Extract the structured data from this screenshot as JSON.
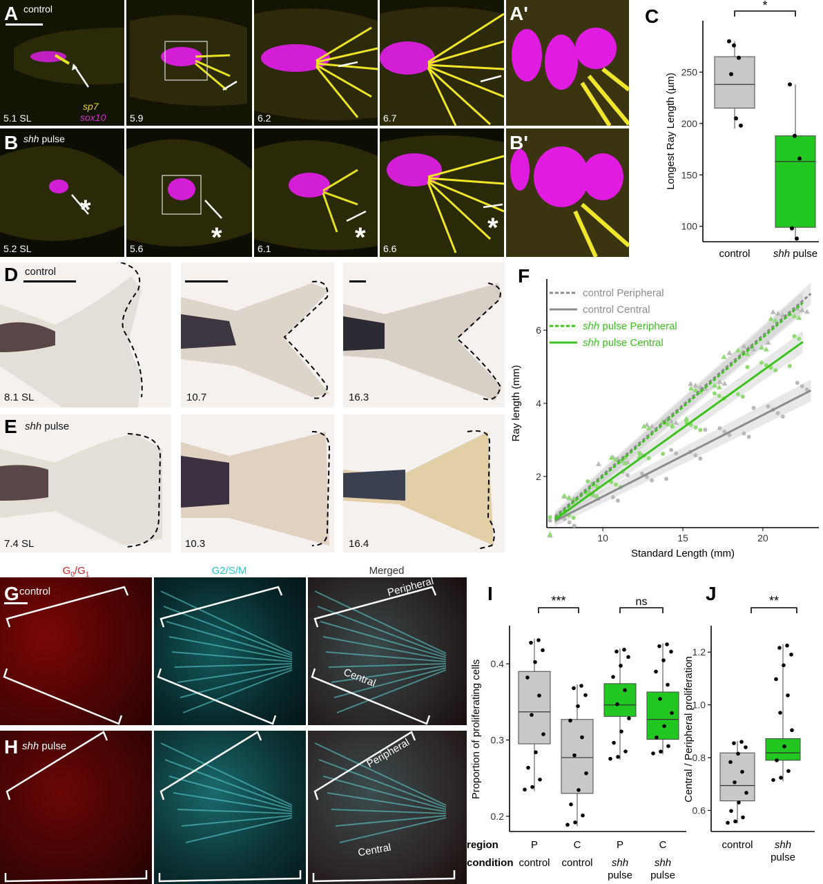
{
  "rowAB": {
    "A_label": "A",
    "B_label": "B",
    "A_cond": "control",
    "B_cond_italic": "shh",
    "B_cond_rest": " pulse",
    "A_stages": [
      "5.1 SL",
      "5.9",
      "6.2",
      "6.7"
    ],
    "B_stages": [
      "5.2 SL",
      "5.6",
      "6.1",
      "6.6"
    ],
    "legend_sp7": "sp7",
    "legend_sox10": "sox10",
    "A_prime": "A'",
    "B_prime": "B'",
    "asterisk": "*"
  },
  "panelC": {
    "label": "C",
    "ylabel": "Longest Ray Length (µm)",
    "yticks": [
      "100",
      "150",
      "200",
      "250"
    ],
    "categories": [
      "control",
      "shh pulse"
    ],
    "cat2_italic": "shh",
    "cat2_rest": " pulse",
    "sig": "*"
  },
  "rowDE": {
    "D_label": "D",
    "E_label": "E",
    "D_cond": "control",
    "E_cond_italic": "shh",
    "E_cond_rest": " pulse",
    "D_stages": [
      "8.1 SL",
      "10.7",
      "16.3"
    ],
    "E_stages": [
      "7.4 SL",
      "10.3",
      "16.4"
    ]
  },
  "panelF": {
    "label": "F",
    "xlabel": "Standard Length (mm)",
    "ylabel": "Ray length (mm)",
    "xticks": [
      "10",
      "15",
      "20"
    ],
    "yticks": [
      "2",
      "4",
      "6"
    ],
    "legend": [
      {
        "text": "control Peripheral",
        "italic": "",
        "color": "#8c8c8c",
        "dash": true
      },
      {
        "text": "control Central",
        "italic": "",
        "color": "#8c8c8c",
        "dash": false
      },
      {
        "text": " pulse Peripheral",
        "italic": "shh",
        "color": "#3cc21e",
        "dash": true
      },
      {
        "text": " pulse Central",
        "italic": "shh",
        "color": "#3cc21e",
        "dash": false
      }
    ]
  },
  "rowGH": {
    "G_label": "G",
    "H_label": "H",
    "G_cond": "control",
    "H_cond_italic": "shh",
    "H_cond_rest": " pulse",
    "col1_head": "G0/G1",
    "col1_main": "G",
    "col1_sub0": "0",
    "col1_sep": "/G",
    "col1_sub1": "1",
    "col2_head": "G2/S/M",
    "col3_head": "Merged",
    "peripheral": "Peripheral",
    "central": "Central"
  },
  "panelI": {
    "label": "I",
    "ylabel": "Proportion of proliferating cells",
    "yticks": [
      "0.2",
      "0.3",
      "0.4"
    ],
    "sig1": "***",
    "sig2": "ns",
    "row_region": "region",
    "row_condition": "condition",
    "regions": [
      "P",
      "C",
      "P",
      "C"
    ],
    "conditions": [
      "control",
      "control",
      "shh pulse",
      "shh pulse"
    ]
  },
  "panelJ": {
    "label": "J",
    "ylabel": "Central / Peripheral proliferation",
    "yticks": [
      "0.6",
      "0.8",
      "1.0",
      "1.2"
    ],
    "sig": "**",
    "categories": [
      "control",
      "shh pulse"
    ]
  },
  "chart_data": [
    {
      "type": "box",
      "panel": "C",
      "ylabel": "Longest Ray Length (µm)",
      "categories": [
        "control",
        "shh pulse"
      ],
      "colors": [
        "#c8c8c8",
        "#22c722"
      ],
      "boxes": [
        {
          "q1": 215,
          "median": 238,
          "q3": 265,
          "whisker_low": 195,
          "whisker_high": 280
        },
        {
          "q1": 99,
          "median": 163,
          "q3": 188,
          "whisker_low": 88,
          "whisker_high": 238
        }
      ],
      "points": [
        [
          280,
          276,
          264,
          248,
          205,
          198
        ],
        [
          238,
          188,
          166,
          98,
          88
        ]
      ],
      "ylim": [
        85,
        300
      ],
      "significance": "*"
    },
    {
      "type": "scatter",
      "panel": "F",
      "xlabel": "Standard Length (mm)",
      "ylabel": "Ray length (mm)",
      "xlim": [
        6.5,
        23.5
      ],
      "ylim": [
        0.6,
        7.4
      ],
      "fits": [
        {
          "name": "control Peripheral",
          "x": [
            7,
            23
          ],
          "y": [
            0.9,
            7.0
          ],
          "style": "dashed",
          "color": "#8c8c8c"
        },
        {
          "name": "control Central",
          "x": [
            7,
            23
          ],
          "y": [
            0.78,
            4.35
          ],
          "style": "solid",
          "color": "#8c8c8c"
        },
        {
          "name": "shh pulse Peripheral",
          "x": [
            7,
            22.5
          ],
          "y": [
            0.85,
            6.75
          ],
          "style": "dashed",
          "color": "#3cc21e"
        },
        {
          "name": "shh pulse Central",
          "x": [
            7,
            22.5
          ],
          "y": [
            0.82,
            5.68
          ],
          "style": "solid",
          "color": "#3cc21e"
        }
      ]
    },
    {
      "type": "box",
      "panel": "I",
      "ylabel": "Proportion of proliferating cells",
      "categories": [
        "P control",
        "C control",
        "P shh pulse",
        "C shh pulse"
      ],
      "colors": [
        "#c8c8c8",
        "#c8c8c8",
        "#22c722",
        "#22c722"
      ],
      "boxes": [
        {
          "q1": 0.295,
          "median": 0.337,
          "q3": 0.39,
          "whisker_low": 0.233,
          "whisker_high": 0.433
        },
        {
          "q1": 0.23,
          "median": 0.277,
          "q3": 0.327,
          "whisker_low": 0.187,
          "whisker_high": 0.373
        },
        {
          "q1": 0.331,
          "median": 0.346,
          "q3": 0.374,
          "whisker_low": 0.274,
          "whisker_high": 0.42
        },
        {
          "q1": 0.301,
          "median": 0.327,
          "q3": 0.363,
          "whisker_low": 0.281,
          "whisker_high": 0.427
        }
      ],
      "ylim": [
        0.18,
        0.45
      ],
      "significance": [
        "***",
        "ns"
      ]
    },
    {
      "type": "box",
      "panel": "J",
      "ylabel": "Central / Peripheral proliferation",
      "categories": [
        "control",
        "shh pulse"
      ],
      "colors": [
        "#c8c8c8",
        "#22c722"
      ],
      "boxes": [
        {
          "q1": 0.636,
          "median": 0.694,
          "q3": 0.818,
          "whisker_low": 0.55,
          "whisker_high": 0.863
        },
        {
          "q1": 0.79,
          "median": 0.818,
          "q3": 0.872,
          "whisker_low": 0.71,
          "whisker_high": 1.23
        }
      ],
      "ylim": [
        0.52,
        1.3
      ],
      "significance": "**"
    }
  ]
}
